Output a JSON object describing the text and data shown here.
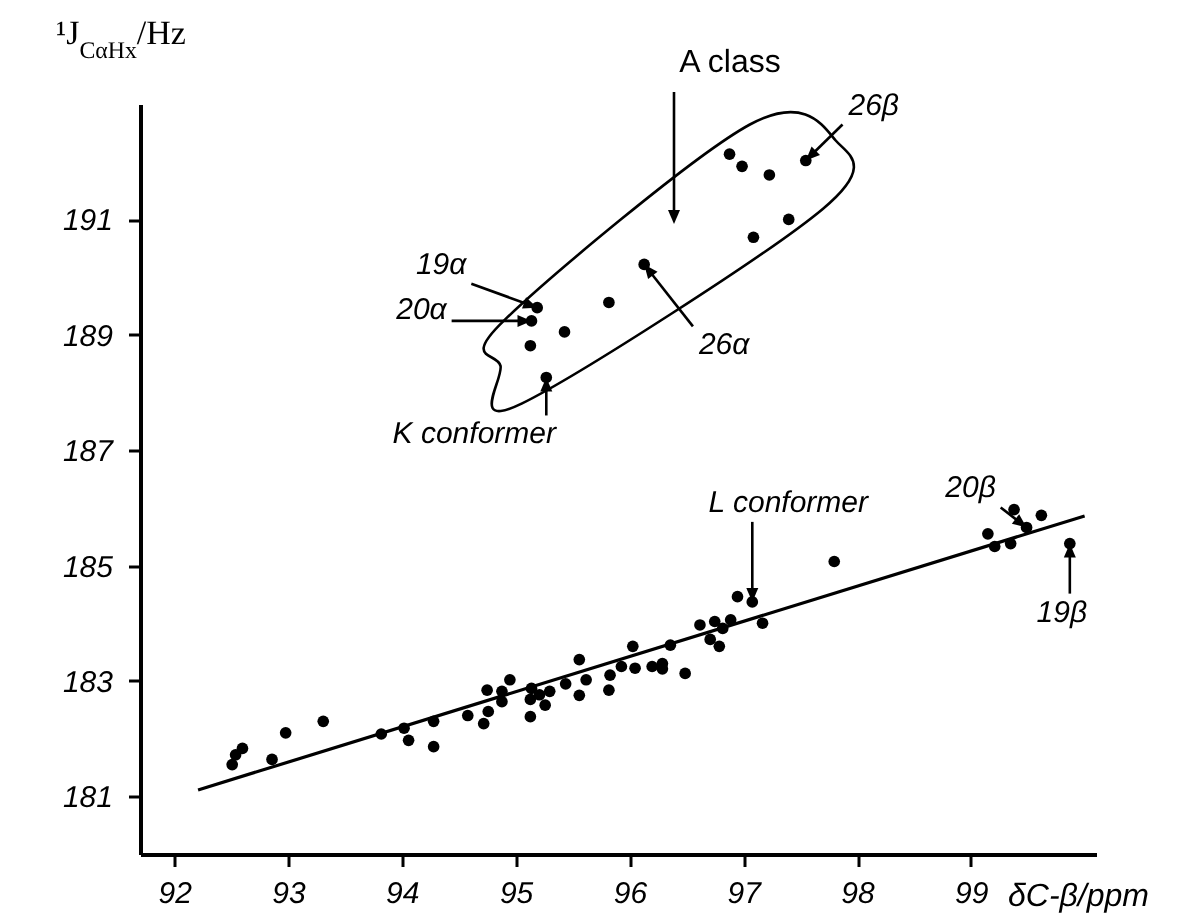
{
  "chart_data": {
    "type": "scatter",
    "xlabel": "δC-β/ppm",
    "ylabel": "¹J$_{CαHx}$/Hz",
    "xlim": [
      91.7,
      100.1
    ],
    "xticks": [
      92,
      93,
      94,
      95,
      96,
      97,
      98,
      99
    ],
    "ylim": [
      180,
      193
    ],
    "yticks": [
      181,
      183,
      185,
      187,
      189,
      191
    ],
    "grid": false,
    "series": [
      {
        "color": "#000000",
        "x": [
          92.51,
          92.54,
          92.6,
          92.86,
          92.98,
          93.31,
          93.82,
          94.02,
          94.06,
          94.28,
          94.28,
          94.58,
          94.72,
          94.76,
          94.75,
          94.88,
          94.88,
          94.95,
          95.13,
          95.13,
          95.14,
          95.21,
          95.26,
          95.3,
          95.44,
          95.56,
          95.56,
          95.62,
          95.82,
          95.83,
          95.93,
          96.05,
          96.03,
          96.2,
          96.29,
          96.29,
          96.36,
          96.49,
          96.62,
          96.71,
          96.75,
          96.79,
          96.82,
          96.89,
          96.95,
          97.08,
          97.17,
          97.8,
          99.15,
          99.21,
          99.35,
          99.38,
          99.49,
          99.62,
          99.87
        ],
        "values": [
          181.55,
          181.72,
          181.83,
          181.64,
          182.1,
          182.3,
          182.08,
          182.18,
          181.97,
          182.3,
          181.86,
          182.4,
          182.26,
          182.47,
          182.84,
          182.64,
          182.82,
          183.02,
          182.38,
          182.68,
          182.87,
          182.76,
          182.58,
          182.82,
          182.95,
          183.37,
          182.75,
          183.02,
          182.84,
          183.1,
          183.25,
          183.22,
          183.6,
          183.25,
          183.3,
          183.21,
          183.62,
          183.13,
          183.97,
          183.72,
          184.03,
          183.6,
          183.91,
          184.06,
          184.46,
          184.37,
          184.0,
          185.07,
          185.55,
          185.33,
          185.38,
          185.97,
          185.66,
          185.87,
          185.38
        ]
      },
      {
        "color": "#000000",
        "x": [
          95.19,
          95.14,
          95.43,
          95.13,
          95.27,
          95.82,
          96.13,
          96.88,
          96.99,
          97.23,
          97.55,
          97.4,
          97.09
        ],
        "values": [
          189.47,
          189.24,
          189.05,
          188.81,
          188.26,
          189.56,
          190.22,
          192.13,
          191.92,
          191.77,
          192.02,
          191.0,
          190.69
        ]
      },
      {
        "type": "line",
        "color": "#000000",
        "x": [
          92.21,
          100.0
        ],
        "values": [
          181.11,
          185.86
        ]
      }
    ],
    "annotations": [
      "A class",
      {
        "text": "19α",
        "x": 95.19,
        "y": 189.47
      },
      {
        "text": "20α",
        "x": 95.14,
        "y": 189.24
      },
      {
        "text": "26α",
        "x": 96.13,
        "y": 190.22
      },
      {
        "text": "26β",
        "x": 97.55,
        "y": 192.02
      },
      {
        "text": "K conformer",
        "x": 95.27,
        "y": 188.26
      },
      {
        "text": "L conformer",
        "x": 97.08,
        "y": 184.37
      },
      {
        "text": "20β",
        "x": 99.49,
        "y": 185.66
      },
      {
        "text": "19β",
        "x": 99.87,
        "y": 185.38
      }
    ]
  }
}
